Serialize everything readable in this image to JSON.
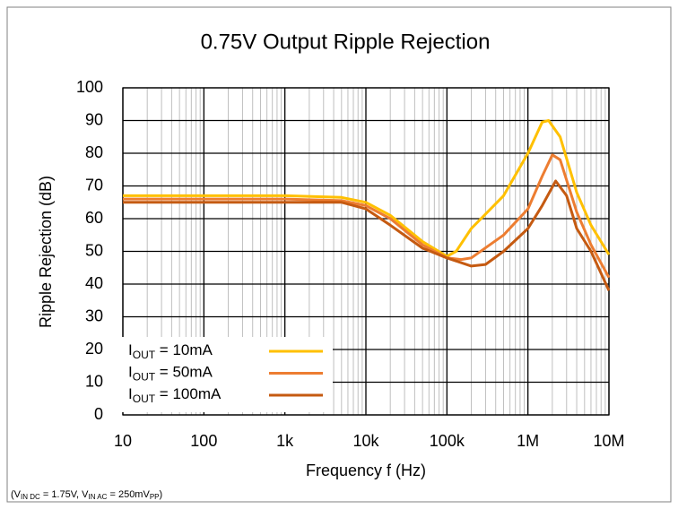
{
  "chart_data": {
    "type": "line",
    "title": "0.75V Output Ripple Rejection",
    "x_label": "Frequency f (Hz)",
    "y_label": "Ripple Rejection (dB)",
    "footnote_parts": [
      "(V",
      "IN DC",
      " = 1.75V, V",
      "IN AC",
      " = 250mV",
      "PP",
      ")"
    ],
    "xscale": "log",
    "xlim": [
      10,
      10000000
    ],
    "xticks": [
      10,
      100,
      {
        "value": 1000,
        "label": "1k"
      },
      {
        "value": 10000,
        "label": "10k"
      },
      {
        "value": 100000,
        "label": "100k"
      },
      {
        "value": 1000000,
        "label": "1M"
      },
      {
        "value": 10000000,
        "label": "10M"
      }
    ],
    "ylim": [
      0,
      100
    ],
    "yticks": [
      0,
      10,
      20,
      30,
      40,
      50,
      60,
      70,
      80,
      90,
      100
    ],
    "grid": true,
    "minor_grid": true,
    "legend": "lower left",
    "series": [
      {
        "name": "IOUT = 10mA",
        "color": "#FFC000",
        "x": [
          10,
          100,
          1000,
          5000,
          10000,
          20000,
          50000,
          100000,
          130000,
          200000,
          500000,
          1000000,
          1500000,
          1800000,
          2500000,
          4000000,
          6000000,
          10000000
        ],
        "values": [
          67,
          67,
          67,
          66.5,
          65,
          61,
          53,
          48.5,
          50,
          57,
          67,
          80,
          89.5,
          90,
          85,
          68,
          58,
          49
        ]
      },
      {
        "name": "IOUT = 50mA",
        "color": "#ED7D31",
        "x": [
          10,
          1000,
          5000,
          10000,
          20000,
          50000,
          100000,
          150000,
          200000,
          500000,
          1000000,
          1500000,
          2000000,
          2500000,
          4000000,
          6000000,
          10000000
        ],
        "values": [
          66,
          66,
          65.5,
          64,
          60,
          52,
          48,
          47.5,
          48,
          55,
          63,
          73,
          79.5,
          78,
          62,
          52,
          42
        ]
      },
      {
        "name": "IOUT = 100mA",
        "color": "#C55A11",
        "x": [
          10,
          1000,
          5000,
          10000,
          20000,
          50000,
          100000,
          200000,
          300000,
          500000,
          1000000,
          1500000,
          2200000,
          3000000,
          4000000,
          6000000,
          10000000
        ],
        "values": [
          65,
          65,
          65,
          63,
          58,
          51,
          48,
          45.5,
          46,
          50,
          57,
          64,
          71.5,
          67,
          57,
          50,
          38
        ]
      }
    ]
  }
}
